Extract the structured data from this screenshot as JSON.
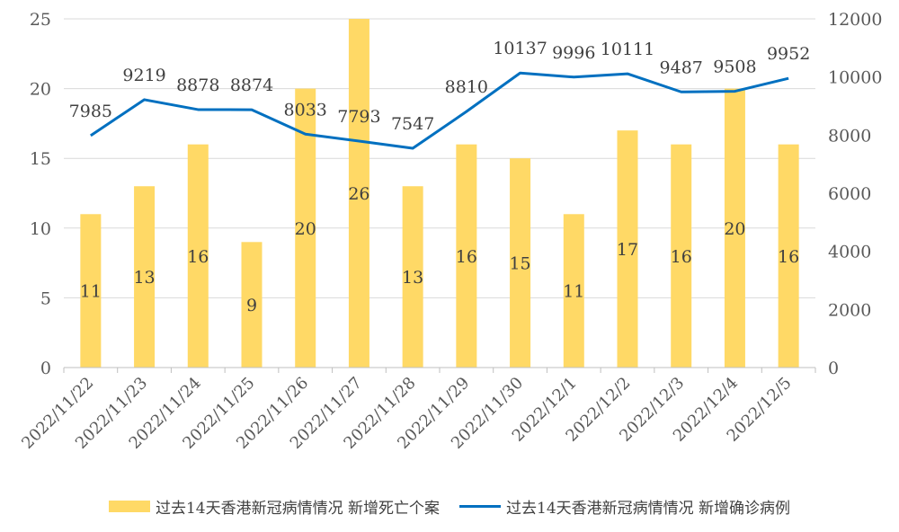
{
  "chart_data": {
    "type": "bar+line",
    "categories": [
      "2022/11/22",
      "2022/11/23",
      "2022/11/24",
      "2022/11/25",
      "2022/11/26",
      "2022/11/27",
      "2022/11/28",
      "2022/11/29",
      "2022/11/30",
      "2022/12/1",
      "2022/12/2",
      "2022/12/3",
      "2022/12/4",
      "2022/12/5"
    ],
    "series": [
      {
        "name": "过去14天香港新冠病情情况 新增死亡个案",
        "type": "bar",
        "axis": "left",
        "color": "#FFD966",
        "values": [
          11,
          13,
          16,
          9,
          20,
          26,
          13,
          16,
          15,
          11,
          17,
          16,
          20,
          16
        ]
      },
      {
        "name": "过去14天香港新冠病情情况 新增确诊病例",
        "type": "line",
        "axis": "right",
        "color": "#0070C0",
        "values": [
          7985,
          9219,
          8878,
          8874,
          8033,
          7793,
          7547,
          8810,
          10137,
          9996,
          10111,
          9487,
          9508,
          9952
        ]
      }
    ],
    "y_left": {
      "range": [
        0,
        25
      ],
      "ticks": [
        "0",
        "5",
        "10",
        "15",
        "20",
        "25"
      ]
    },
    "y_right": {
      "range": [
        0,
        12000
      ],
      "ticks": [
        "0",
        "2000",
        "4000",
        "6000",
        "8000",
        "10000",
        "12000"
      ]
    },
    "grid": true,
    "legend_position": "bottom"
  }
}
